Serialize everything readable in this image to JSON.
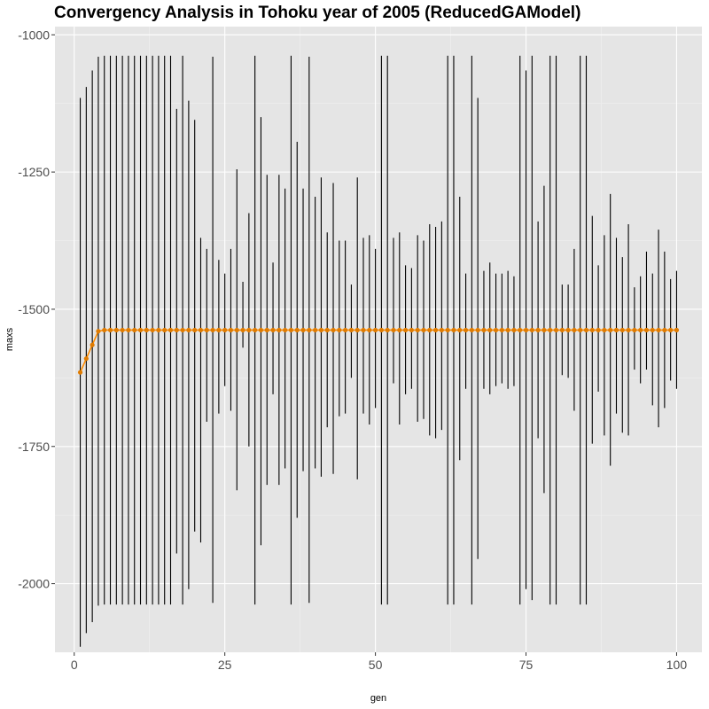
{
  "chart_data": {
    "type": "line",
    "title": "Convergency Analysis in  Tohoku year of 2005 (ReducedGAModel)",
    "xlabel": "gen",
    "ylabel": "maxs",
    "xlim": [
      -3.2,
      104.2
    ],
    "ylim": [
      -2125,
      -985
    ],
    "x_ticks": [
      0,
      25,
      50,
      75,
      100
    ],
    "x_tick_labels": [
      "0",
      "25",
      "50",
      "75",
      "100"
    ],
    "y_ticks": [
      -2000,
      -1750,
      -1500,
      -1250,
      -1000
    ],
    "y_tick_labels": [
      "-2000",
      "-1750",
      "-1500",
      "-1250",
      "-1000"
    ],
    "grid": true,
    "legend": "none",
    "colors": {
      "panel": "#e5e5e5",
      "grid_major": "#ffffff",
      "grid_minor": "#f0f0f0",
      "line": "#ff8c00",
      "point": "#e07b00",
      "range": "#000000"
    },
    "series": [
      {
        "mark": "line-with-points",
        "x": [
          1,
          2,
          3,
          4,
          5,
          6,
          7,
          8,
          9,
          10,
          11,
          12,
          13,
          14,
          15,
          16,
          17,
          18,
          19,
          20,
          21,
          22,
          23,
          24,
          25,
          26,
          27,
          28,
          29,
          30,
          31,
          32,
          33,
          34,
          35,
          36,
          37,
          38,
          39,
          40,
          41,
          42,
          43,
          44,
          45,
          46,
          47,
          48,
          49,
          50,
          51,
          52,
          53,
          54,
          55,
          56,
          57,
          58,
          59,
          60,
          61,
          62,
          63,
          64,
          65,
          66,
          67,
          68,
          69,
          70,
          71,
          72,
          73,
          74,
          75,
          76,
          77,
          78,
          79,
          80,
          81,
          82,
          83,
          84,
          85,
          86,
          87,
          88,
          89,
          90,
          91,
          92,
          93,
          94,
          95,
          96,
          97,
          98,
          99,
          100
        ],
        "y": [
          -1615,
          -1590,
          -1565,
          -1540,
          -1538,
          -1538,
          -1538,
          -1538,
          -1538,
          -1538,
          -1538,
          -1538,
          -1538,
          -1538,
          -1538,
          -1538,
          -1538,
          -1538,
          -1538,
          -1538,
          -1538,
          -1538,
          -1538,
          -1538,
          -1538,
          -1538,
          -1538,
          -1538,
          -1538,
          -1538,
          -1538,
          -1538,
          -1538,
          -1538,
          -1538,
          -1538,
          -1538,
          -1538,
          -1538,
          -1538,
          -1538,
          -1538,
          -1538,
          -1538,
          -1538,
          -1538,
          -1538,
          -1538,
          -1538,
          -1538,
          -1538,
          -1538,
          -1538,
          -1538,
          -1538,
          -1538,
          -1538,
          -1538,
          -1538,
          -1538,
          -1538,
          -1538,
          -1538,
          -1538,
          -1538,
          -1538,
          -1538,
          -1538,
          -1538,
          -1538,
          -1538,
          -1538,
          -1538,
          -1538,
          -1538,
          -1538,
          -1538,
          -1538,
          -1538,
          -1538,
          -1538,
          -1538,
          -1538,
          -1538,
          -1538,
          -1538,
          -1538,
          -1538,
          -1538,
          -1538,
          -1538,
          -1538,
          -1538,
          -1538,
          -1538,
          -1538,
          -1538,
          -1538,
          -1538,
          -1538
        ]
      },
      {
        "mark": "vertical-range",
        "x": [
          1,
          2,
          3,
          4,
          5,
          6,
          7,
          8,
          9,
          10,
          11,
          12,
          13,
          14,
          15,
          16,
          17,
          18,
          19,
          20,
          21,
          22,
          23,
          24,
          25,
          26,
          27,
          28,
          29,
          30,
          31,
          32,
          33,
          34,
          35,
          36,
          37,
          38,
          39,
          40,
          41,
          42,
          43,
          44,
          45,
          46,
          47,
          48,
          49,
          50,
          51,
          52,
          53,
          54,
          55,
          56,
          57,
          58,
          59,
          60,
          61,
          62,
          63,
          64,
          65,
          66,
          67,
          68,
          69,
          70,
          71,
          72,
          73,
          74,
          75,
          76,
          77,
          78,
          79,
          80,
          81,
          82,
          83,
          84,
          85,
          86,
          87,
          88,
          89,
          90,
          91,
          92,
          93,
          94,
          95,
          96,
          97,
          98,
          99,
          100
        ],
        "ymin": [
          -2115,
          -2090,
          -2070,
          -2040,
          -2038,
          -2038,
          -2038,
          -2038,
          -2038,
          -2038,
          -2038,
          -2038,
          -2038,
          -2038,
          -2038,
          -2038,
          -1945,
          -2038,
          -2010,
          -1905,
          -1925,
          -1705,
          -2035,
          -1690,
          -1640,
          -1685,
          -1830,
          -1570,
          -1750,
          -2038,
          -1930,
          -1820,
          -1655,
          -1820,
          -1790,
          -2038,
          -1880,
          -1795,
          -2035,
          -1790,
          -1805,
          -1715,
          -1800,
          -1695,
          -1690,
          -1625,
          -1810,
          -1690,
          -1710,
          -1680,
          -2038,
          -2038,
          -1635,
          -1710,
          -1655,
          -1645,
          -1705,
          -1700,
          -1730,
          -1735,
          -1720,
          -2038,
          -2038,
          -1775,
          -1645,
          -2038,
          -1955,
          -1645,
          -1655,
          -1640,
          -1635,
          -1645,
          -1640,
          -2038,
          -2010,
          -2030,
          -1735,
          -1835,
          -2038,
          -2038,
          -1620,
          -1625,
          -1685,
          -2038,
          -2038,
          -1745,
          -1650,
          -1730,
          -1785,
          -1690,
          -1725,
          -1730,
          -1610,
          -1635,
          -1610,
          -1675,
          -1715,
          -1680,
          -1630,
          -1645
        ],
        "ymax": [
          -1115,
          -1095,
          -1065,
          -1040,
          -1038,
          -1038,
          -1038,
          -1038,
          -1038,
          -1038,
          -1038,
          -1038,
          -1038,
          -1038,
          -1038,
          -1038,
          -1135,
          -1038,
          -1120,
          -1155,
          -1370,
          -1390,
          -1040,
          -1410,
          -1435,
          -1390,
          -1245,
          -1450,
          -1325,
          -1038,
          -1150,
          -1255,
          -1415,
          -1255,
          -1280,
          -1038,
          -1195,
          -1280,
          -1040,
          -1295,
          -1260,
          -1360,
          -1270,
          -1375,
          -1375,
          -1455,
          -1260,
          -1370,
          -1365,
          -1390,
          -1038,
          -1038,
          -1370,
          -1360,
          -1420,
          -1425,
          -1365,
          -1375,
          -1345,
          -1350,
          -1340,
          -1038,
          -1038,
          -1295,
          -1435,
          -1038,
          -1115,
          -1430,
          -1415,
          -1435,
          -1435,
          -1430,
          -1440,
          -1038,
          -1065,
          -1038,
          -1340,
          -1275,
          -1038,
          -1038,
          -1455,
          -1455,
          -1390,
          -1038,
          -1038,
          -1330,
          -1420,
          -1365,
          -1290,
          -1370,
          -1405,
          -1345,
          -1460,
          -1440,
          -1395,
          -1435,
          -1355,
          -1395,
          -1445,
          -1430
        ]
      }
    ]
  }
}
